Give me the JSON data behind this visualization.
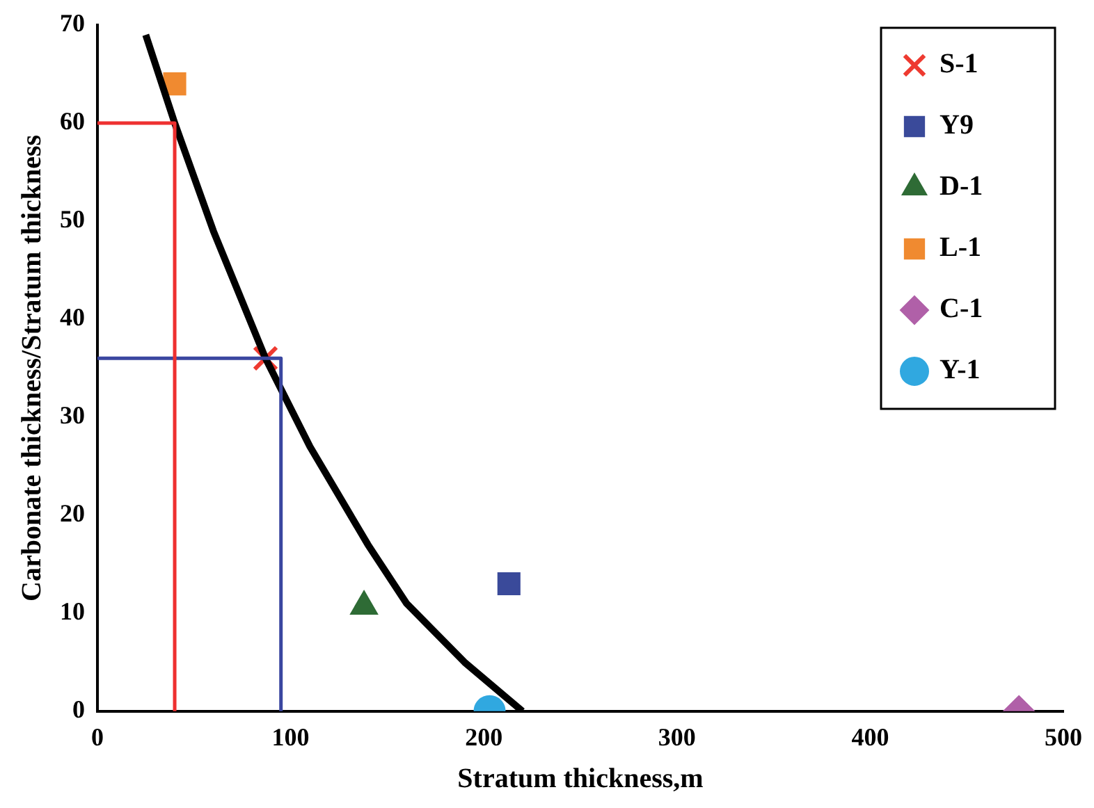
{
  "chart_data": {
    "type": "scatter",
    "xlabel": "Stratum thickness,m",
    "ylabel": "Carbonate thickness/Stratum thickness",
    "xlim": [
      0,
      500
    ],
    "xticks": [
      0,
      100,
      200,
      300,
      400,
      500
    ],
    "ylim": [
      0,
      70
    ],
    "yticks": [
      0,
      10,
      20,
      30,
      40,
      50,
      60,
      70
    ],
    "grid": false,
    "legend": "top right",
    "series": [
      {
        "type": "line",
        "color": "#ee3030",
        "marker": "none",
        "x": [
          0,
          40,
          40
        ],
        "values": [
          60,
          60,
          0
        ]
      },
      {
        "type": "line",
        "color": "#3a46a0",
        "marker": "none",
        "x": [
          0,
          95,
          95
        ],
        "values": [
          36,
          36,
          0
        ]
      },
      {
        "type": "line",
        "color": "#000000",
        "marker": "none",
        "x": [
          25,
          40,
          60,
          87,
          110,
          140,
          160,
          190,
          220
        ],
        "values": [
          69,
          60,
          49,
          36,
          27,
          17,
          11,
          5,
          0
        ]
      },
      {
        "name": "S-1",
        "color": "#ee3a30",
        "marker": "cross",
        "x": [
          87
        ],
        "values": [
          36
        ]
      },
      {
        "name": "Y9",
        "color": "#3a4a9a",
        "marker": "square",
        "x": [
          213
        ],
        "values": [
          13
        ]
      },
      {
        "name": "D-1",
        "color": "#2e6b35",
        "marker": "triangle",
        "x": [
          138
        ],
        "values": [
          10.7
        ]
      },
      {
        "name": "L-1",
        "color": "#f08a30",
        "marker": "square",
        "x": [
          40
        ],
        "values": [
          64
        ]
      },
      {
        "name": "C-1",
        "color": "#b060a8",
        "marker": "diamond",
        "x": [
          477
        ],
        "values": [
          0
        ]
      },
      {
        "name": "Y-1",
        "color": "#30a8e0",
        "marker": "circle",
        "x": [
          203
        ],
        "values": [
          0
        ]
      }
    ]
  }
}
